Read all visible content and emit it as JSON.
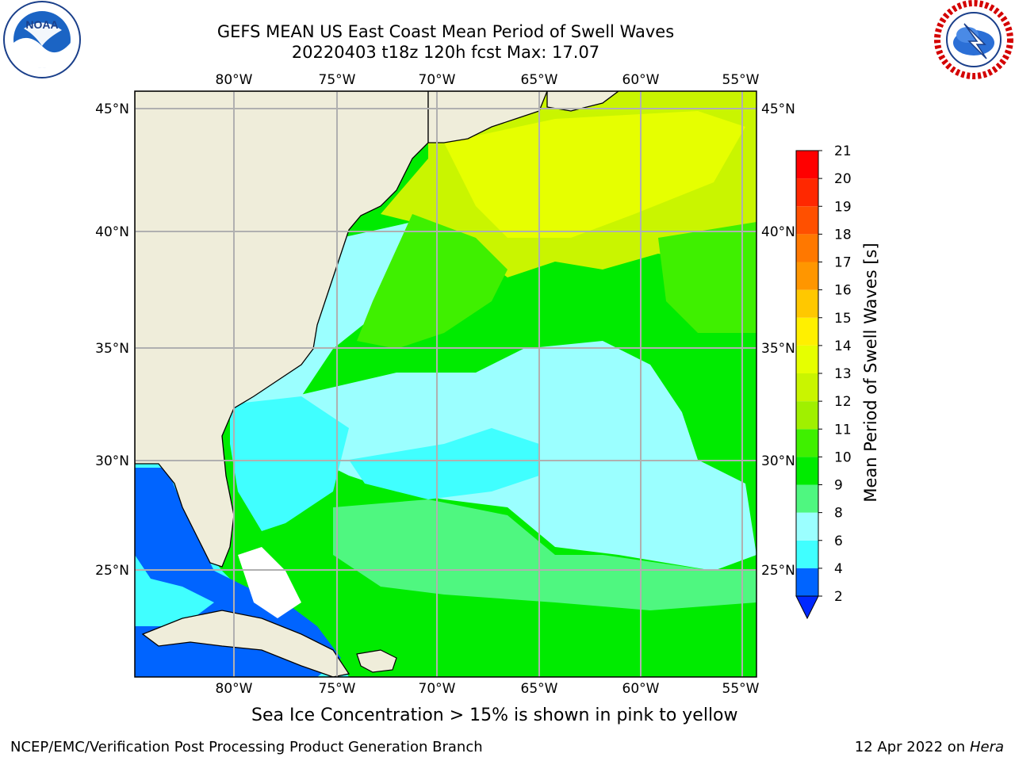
{
  "header": {
    "title_line1": "GEFS MEAN US East Coast Mean Period of Swell Waves",
    "title_line2": "20220403 t18z 120h fcst   Max: 17.07"
  },
  "logos": {
    "left": {
      "name": "noaa-logo",
      "text": "NOAA",
      "ring_text": "NATIONAL OCEANIC AND ATMOSPHERIC ADMINISTRATION · U.S. DEPARTMENT OF COMMERCE"
    },
    "right": {
      "name": "nws-logo",
      "ring_text": "NATIONAL WEATHER SERVICE"
    }
  },
  "map": {
    "lon_ticks": [
      "80°W",
      "75°W",
      "70°W",
      "65°W",
      "60°W",
      "55°W"
    ],
    "lat_ticks": [
      "45°N",
      "40°N",
      "35°N",
      "30°N",
      "25°N"
    ],
    "lon_range": [
      -85,
      -54.5
    ],
    "lat_range": [
      20.5,
      45.8
    ],
    "land_color": "#efedda",
    "grid_color": "#b0b0b0"
  },
  "colorbar": {
    "label": "Mean Period of Swell Waves [s]",
    "ticks": [
      "2",
      "4",
      "6",
      "8",
      "9",
      "10",
      "11",
      "12",
      "13",
      "14",
      "15",
      "16",
      "17",
      "18",
      "19",
      "20",
      "21"
    ],
    "colors": [
      "#0064ff",
      "#00e6ff",
      "#40ffff",
      "#9bffff",
      "#4ff780",
      "#00eb00",
      "#3ff000",
      "#a0f000",
      "#c9f500",
      "#e6ff00",
      "#fff000",
      "#ffc800",
      "#ff9600",
      "#ff7800",
      "#ff5000",
      "#ff2800",
      "#ff0000"
    ],
    "extend_color": "#0028ff"
  },
  "footer": {
    "note": "Sea Ice Concentration > 15% is shown in pink to yellow",
    "left": "NCEP/EMC/Verification Post Processing Product Generation Branch",
    "right_prefix": "12 Apr 2022 on ",
    "right_host": "Hera"
  }
}
